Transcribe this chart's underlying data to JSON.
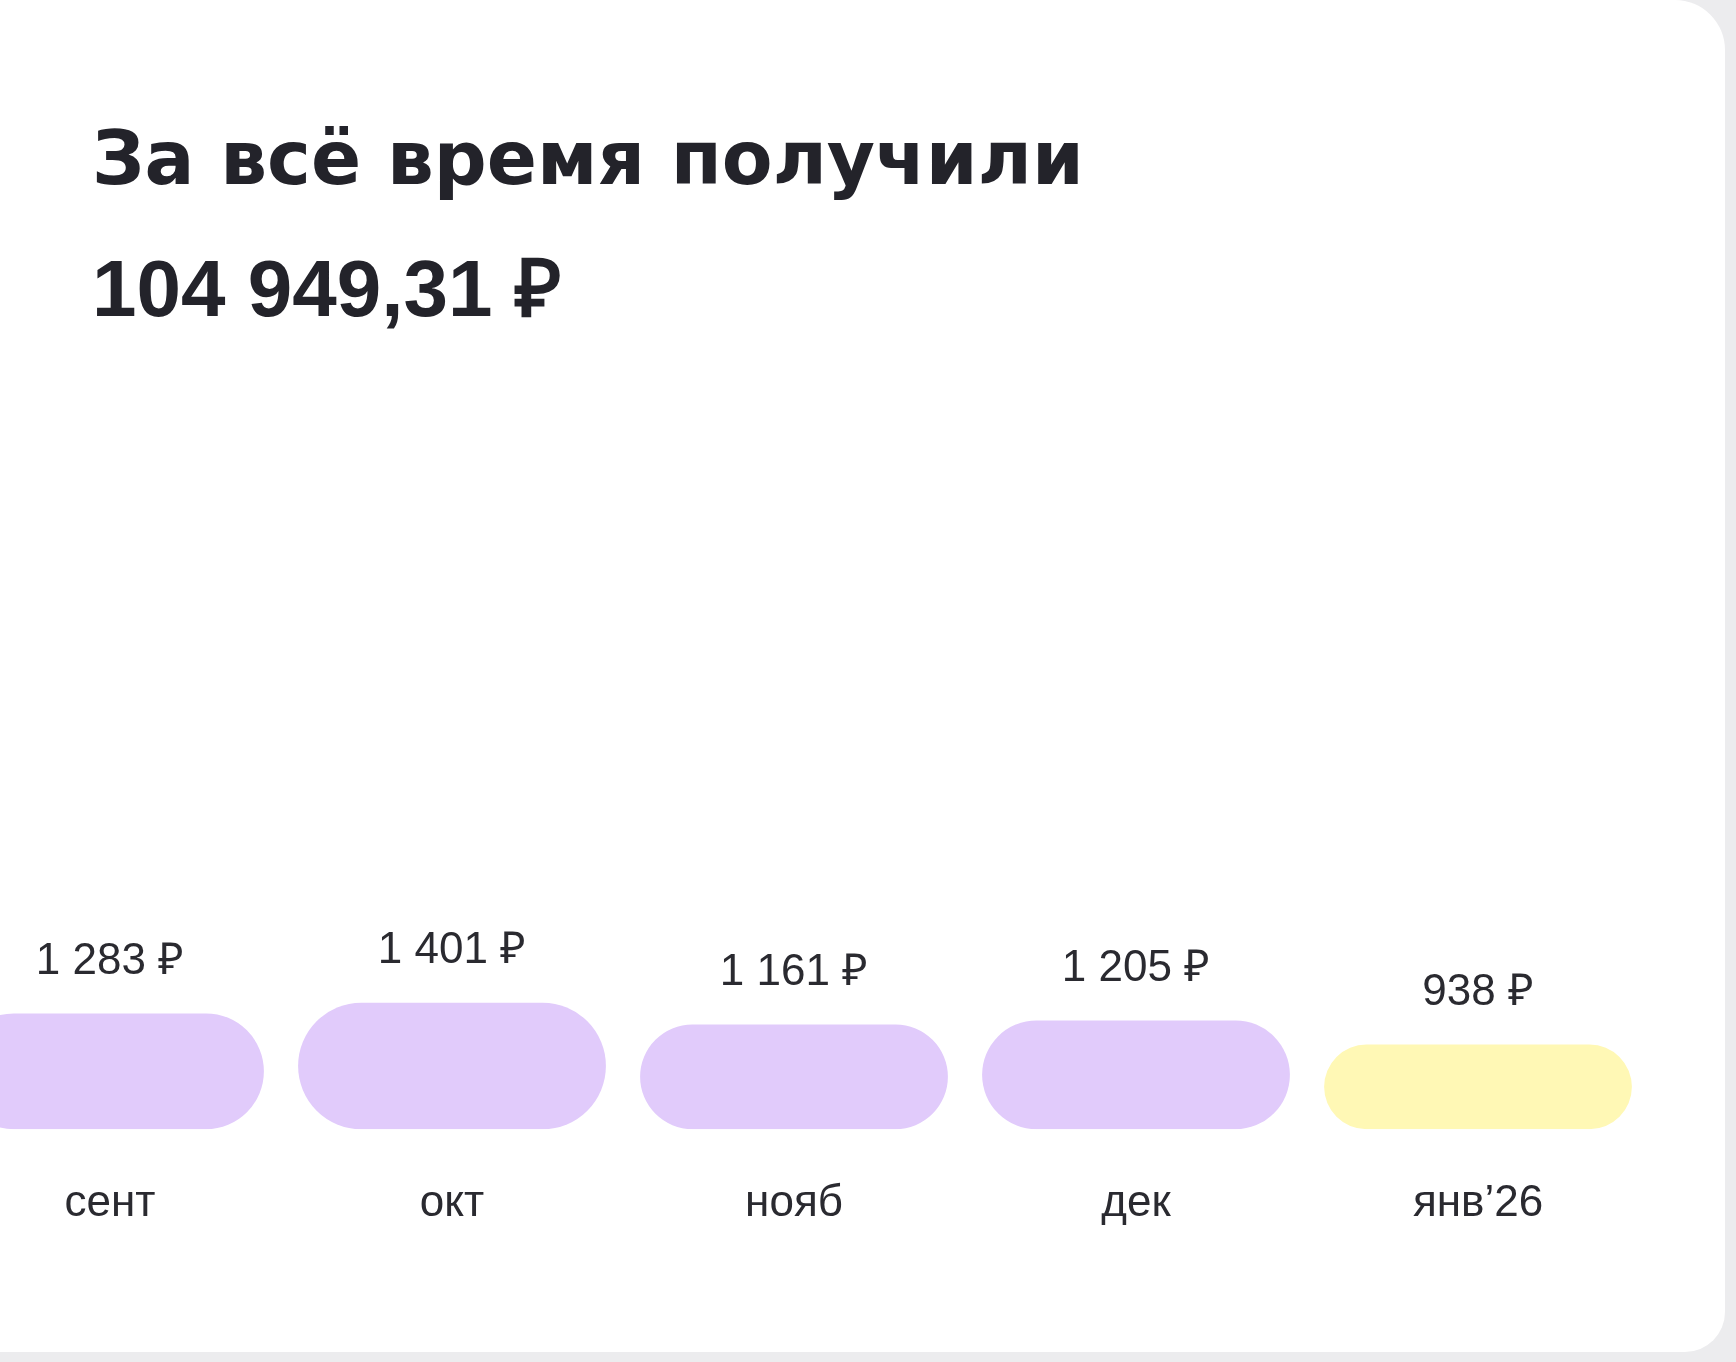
{
  "chart_data": {
    "type": "bar",
    "title": "За всё время получили",
    "subtitle": "104 949,31 ₽",
    "categories": [
      "сент",
      "окт",
      "нояб",
      "дек",
      "янв’26"
    ],
    "values": [
      1283,
      1401,
      1161,
      1205,
      938
    ],
    "colors": [
      "#e1cbfb",
      "#e1cbfb",
      "#e1cbfb",
      "#e1cbfb",
      "#fff8b5"
    ],
    "value_labels": [
      "1 283 ₽",
      "1 401 ₽",
      "1 161 ₽",
      "1 205 ₽",
      "938 ₽"
    ],
    "grid": false,
    "legend": false
  }
}
